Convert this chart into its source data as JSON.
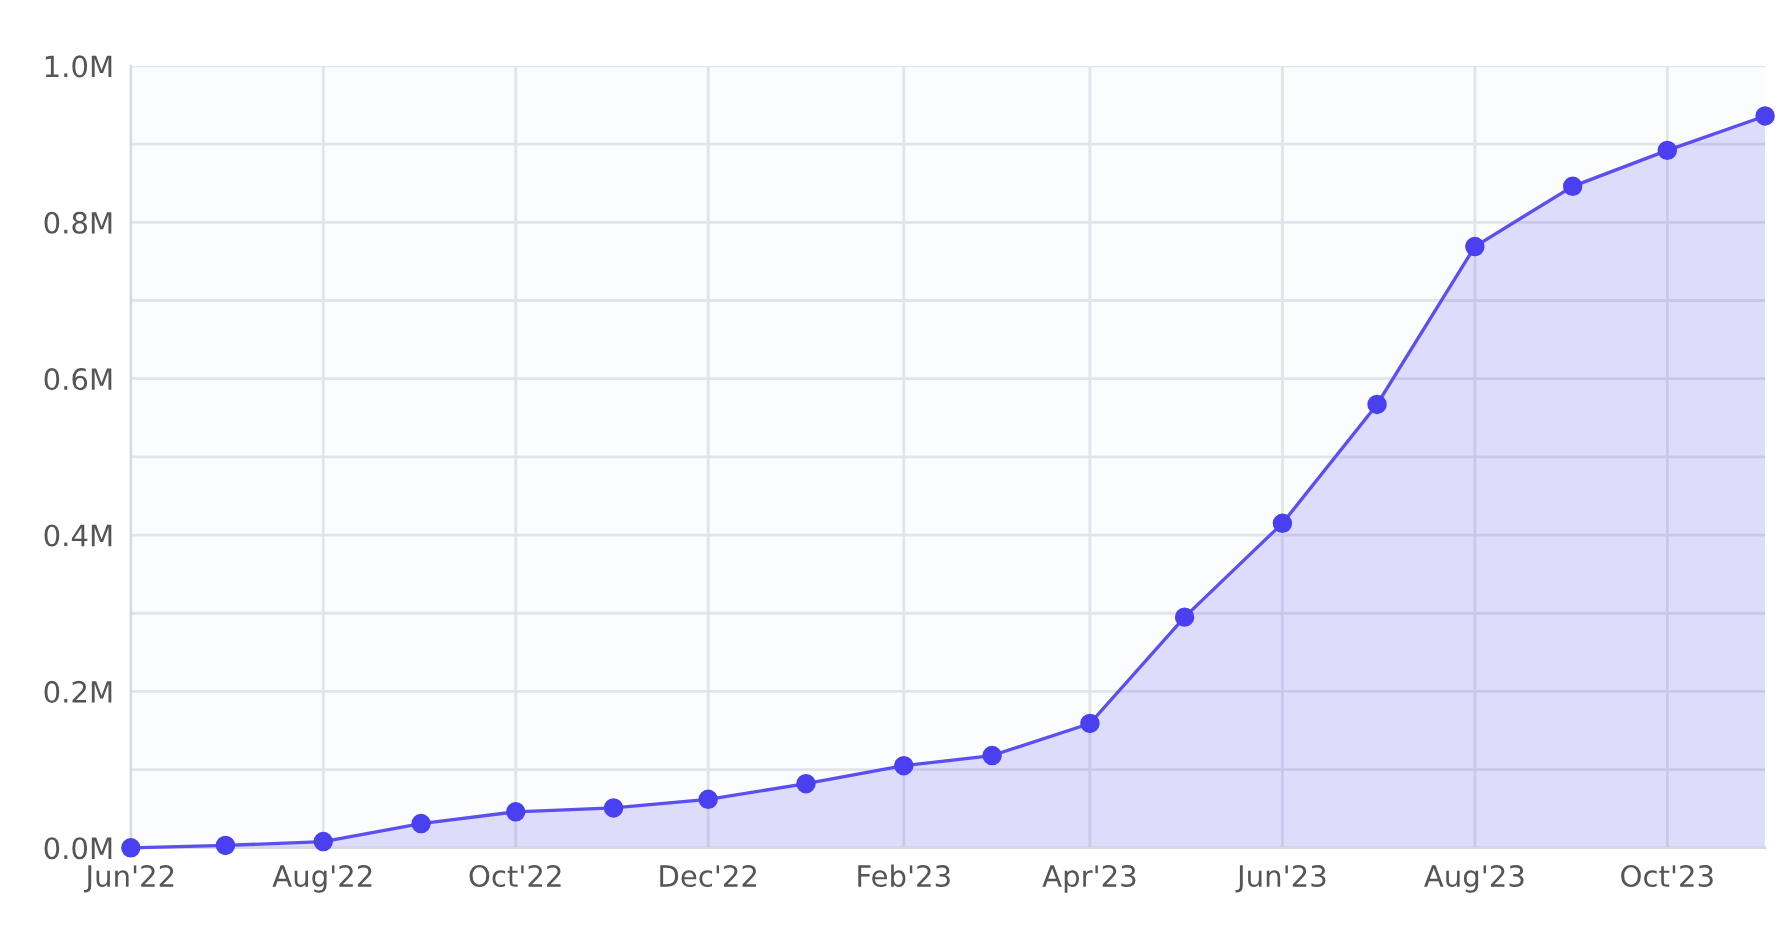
{
  "chart_data": {
    "type": "area",
    "x": [
      "2022-06",
      "2022-07",
      "2022-08",
      "2022-09",
      "2022-10",
      "2022-11",
      "2022-12",
      "2023-01",
      "2023-02",
      "2023-03",
      "2023-04",
      "2023-05",
      "2023-06",
      "2023-07",
      "2023-08",
      "2023-09",
      "2023-10",
      "2023-11"
    ],
    "series": [
      {
        "color": "#5b4ff0",
        "values": [
          0,
          0.003,
          0.008,
          0.031,
          0.046,
          0.051,
          0.062,
          0.082,
          0.105,
          0.118,
          0.159,
          0.295,
          0.415,
          0.567,
          0.769,
          0.846,
          0.892,
          0.936
        ]
      }
    ],
    "xlim": [
      "2022-06",
      "2023-11"
    ],
    "xticks": [
      {
        "value": "2022-06",
        "label": "Jun'22"
      },
      {
        "value": "2022-08",
        "label": "Aug'22"
      },
      {
        "value": "2022-10",
        "label": "Oct'22"
      },
      {
        "value": "2022-12",
        "label": "Dec'22"
      },
      {
        "value": "2023-02",
        "label": "Feb'23"
      },
      {
        "value": "2023-04",
        "label": "Apr'23"
      },
      {
        "value": "2023-06",
        "label": "Jun'23"
      },
      {
        "value": "2023-08",
        "label": "Aug'23"
      },
      {
        "value": "2023-10",
        "label": "Oct'23"
      }
    ],
    "ylim": [
      0,
      1.0
    ],
    "yticks": [
      {
        "value": 0,
        "label": "0.0M"
      },
      {
        "value": 0.1,
        "label": null
      },
      {
        "value": 0.2,
        "label": "0.2M"
      },
      {
        "value": 0.3,
        "label": null
      },
      {
        "value": 0.4,
        "label": "0.4M"
      },
      {
        "value": 0.5,
        "label": null
      },
      {
        "value": 0.6,
        "label": "0.6M"
      },
      {
        "value": 0.7,
        "label": null
      },
      {
        "value": 0.8,
        "label": "0.8M"
      },
      {
        "value": 0.9,
        "label": null
      },
      {
        "value": 1.0,
        "label": "1.0M"
      }
    ],
    "grid": true,
    "marker": "circle",
    "legend": false
  }
}
